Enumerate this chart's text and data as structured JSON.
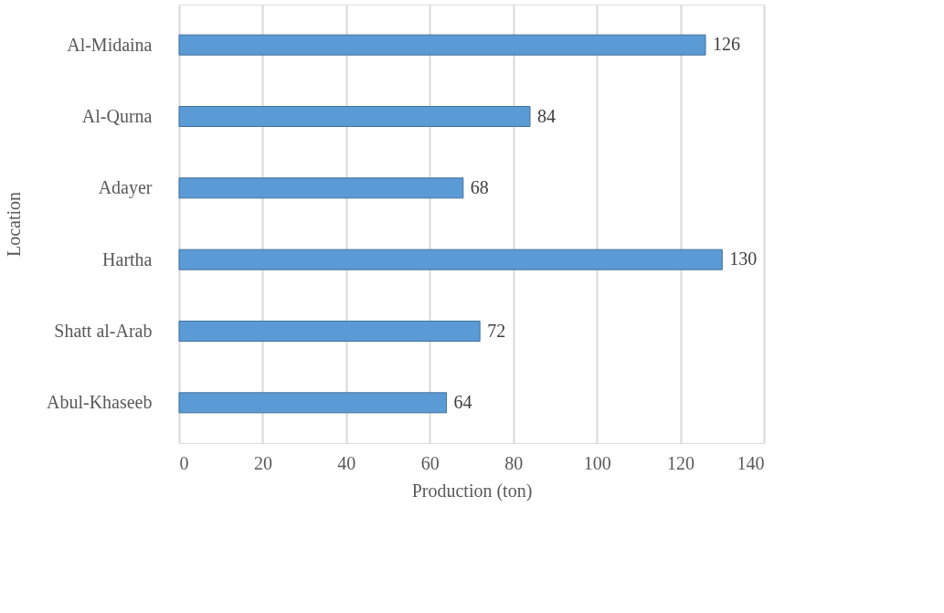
{
  "chart_data": {
    "type": "bar",
    "orientation": "horizontal",
    "xlabel": "Production (ton)",
    "ylabel": "Location",
    "categories": [
      "Al-Midaina",
      "Al-Qurna",
      "Adayer",
      "Hartha",
      "Shatt al-Arab",
      "Abul-Khaseeb"
    ],
    "values": [
      126,
      84,
      68,
      130,
      72,
      64
    ],
    "color": "#5b9bd5",
    "xlim": [
      0,
      140
    ],
    "xticks": [
      0,
      20,
      40,
      60,
      80,
      100,
      120,
      140
    ],
    "grid": "x",
    "data_labels": true
  }
}
